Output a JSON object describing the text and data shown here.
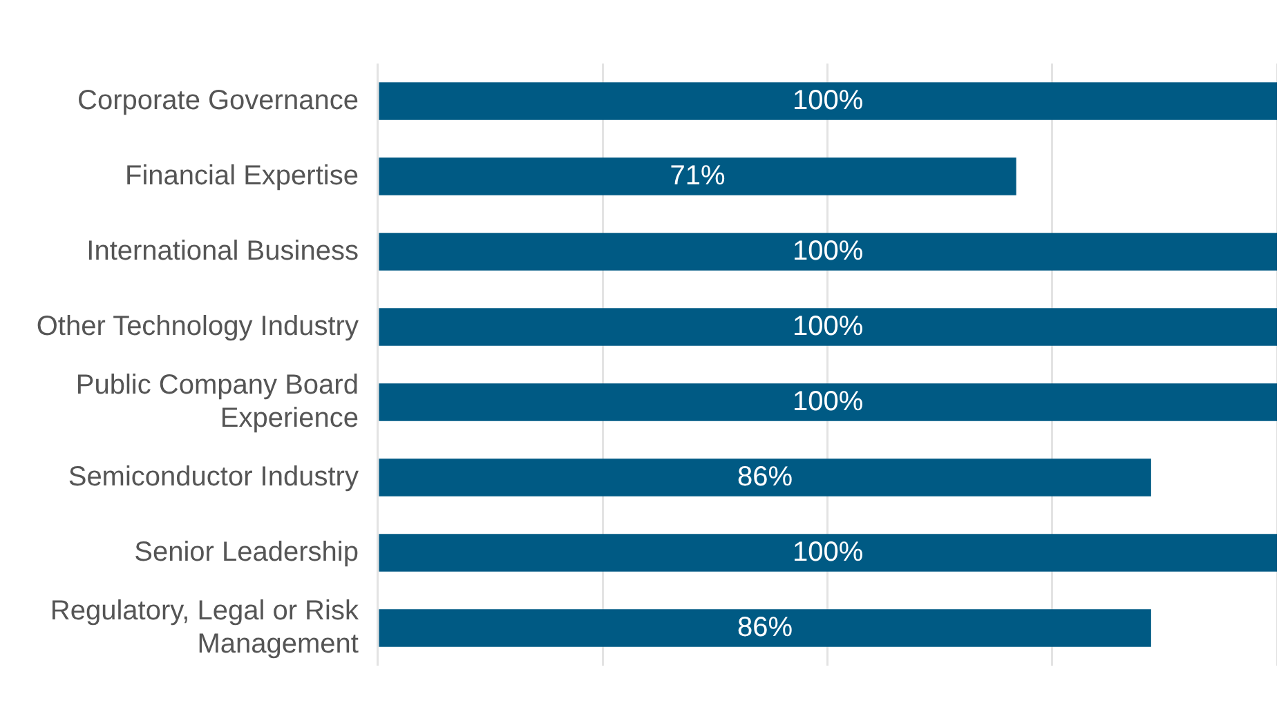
{
  "chart_data": {
    "type": "bar",
    "orientation": "horizontal",
    "categories": [
      "Corporate Governance",
      "Financial Expertise",
      "International Business",
      "Other Technology Industry",
      "Public Company Board Experience",
      "Semiconductor Industry",
      "Senior Leadership",
      "Regulatory, Legal or Risk Management"
    ],
    "values": [
      100,
      71,
      100,
      100,
      100,
      86,
      100,
      86
    ],
    "value_labels": [
      "100%",
      "71%",
      "100%",
      "100%",
      "100%",
      "86%",
      "100%",
      "86%"
    ],
    "color": "#005a84",
    "xlim": [
      0,
      100
    ],
    "xticks": [
      {
        "value": 0,
        "label": null
      },
      {
        "value": 25,
        "label": null
      },
      {
        "value": 50,
        "label": null
      },
      {
        "value": 75,
        "label": null
      },
      {
        "value": 100,
        "label": null
      }
    ],
    "grid": "x",
    "tick_labels": "y",
    "legend": false
  }
}
